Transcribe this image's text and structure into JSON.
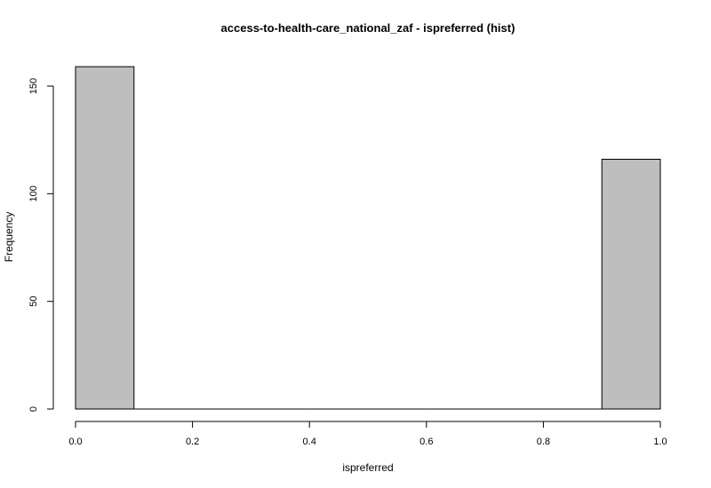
{
  "chart_data": {
    "type": "bar",
    "title": "access-to-health-care_national_zaf - ispreferred (hist)",
    "xlabel": "ispreferred",
    "ylabel": "Frequency",
    "bins": [
      {
        "x0": 0.0,
        "x1": 0.1,
        "count": 159
      },
      {
        "x0": 0.1,
        "x1": 0.2,
        "count": 0
      },
      {
        "x0": 0.2,
        "x1": 0.3,
        "count": 0
      },
      {
        "x0": 0.3,
        "x1": 0.4,
        "count": 0
      },
      {
        "x0": 0.4,
        "x1": 0.5,
        "count": 0
      },
      {
        "x0": 0.5,
        "x1": 0.6,
        "count": 0
      },
      {
        "x0": 0.6,
        "x1": 0.7,
        "count": 0
      },
      {
        "x0": 0.7,
        "x1": 0.8,
        "count": 0
      },
      {
        "x0": 0.8,
        "x1": 0.9,
        "count": 0
      },
      {
        "x0": 0.9,
        "x1": 1.0,
        "count": 116
      }
    ],
    "xlim": [
      0,
      1
    ],
    "ylim": [
      0,
      159
    ],
    "x_ticks": [
      "0.0",
      "0.2",
      "0.4",
      "0.6",
      "0.8",
      "1.0"
    ],
    "y_ticks": [
      "0",
      "50",
      "100",
      "150"
    ],
    "grid": false,
    "bar_color": "#bebebe"
  }
}
